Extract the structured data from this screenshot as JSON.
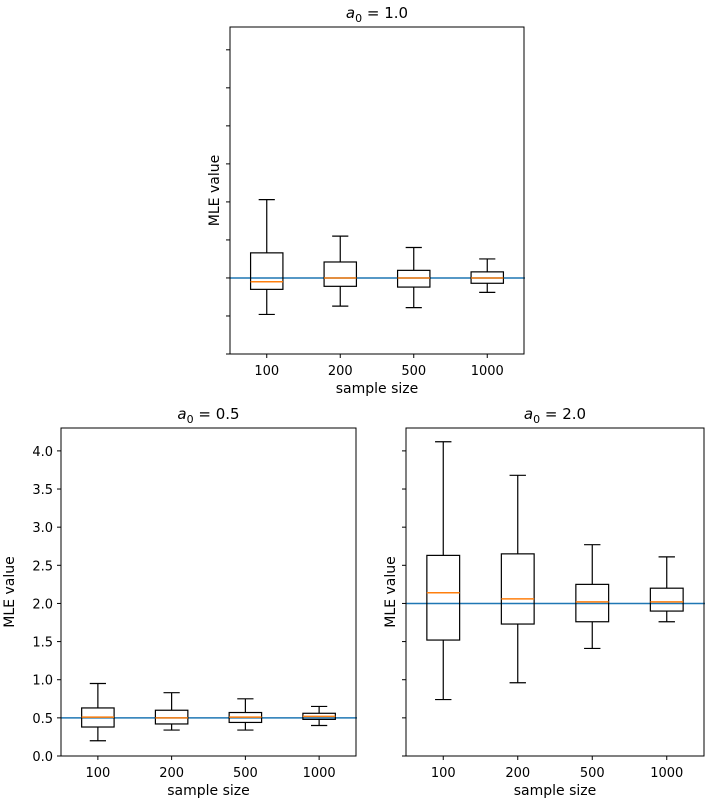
{
  "chart_data": [
    {
      "type": "boxplot",
      "title_var": "a",
      "title_sub": "0",
      "title_value": "= 1.0",
      "xlabel": "sample size",
      "ylabel": "MLE value",
      "ylim": [
        0.0,
        4.3
      ],
      "categories": [
        "100",
        "200",
        "500",
        "1000"
      ],
      "yticks": [],
      "reference_line": 1.0,
      "boxes": [
        {
          "whislo": 0.52,
          "q1": 0.85,
          "med": 0.95,
          "q3": 1.33,
          "whishi": 2.03
        },
        {
          "whislo": 0.63,
          "q1": 0.89,
          "med": 1.0,
          "q3": 1.21,
          "whishi": 1.55
        },
        {
          "whislo": 0.61,
          "q1": 0.88,
          "med": 1.0,
          "q3": 1.1,
          "whishi": 1.4
        },
        {
          "whislo": 0.81,
          "q1": 0.93,
          "med": 1.0,
          "q3": 1.08,
          "whishi": 1.25
        }
      ]
    },
    {
      "type": "boxplot",
      "title_var": "a",
      "title_sub": "0",
      "title_value": "= 0.5",
      "xlabel": "sample size",
      "ylabel": "MLE value",
      "ylim": [
        0.0,
        4.3
      ],
      "categories": [
        "100",
        "200",
        "500",
        "1000"
      ],
      "yticks": [
        "0.0",
        "0.5",
        "1.0",
        "1.5",
        "2.0",
        "2.5",
        "3.0",
        "3.5",
        "4.0"
      ],
      "reference_line": 0.5,
      "boxes": [
        {
          "whislo": 0.2,
          "q1": 0.38,
          "med": 0.51,
          "q3": 0.63,
          "whishi": 0.95
        },
        {
          "whislo": 0.34,
          "q1": 0.42,
          "med": 0.5,
          "q3": 0.6,
          "whishi": 0.83
        },
        {
          "whislo": 0.34,
          "q1": 0.44,
          "med": 0.51,
          "q3": 0.57,
          "whishi": 0.75
        },
        {
          "whislo": 0.4,
          "q1": 0.48,
          "med": 0.52,
          "q3": 0.56,
          "whishi": 0.65
        }
      ]
    },
    {
      "type": "boxplot",
      "title_var": "a",
      "title_sub": "0",
      "title_value": "= 2.0",
      "xlabel": "sample size",
      "ylabel": "MLE value",
      "ylim": [
        0.0,
        4.3
      ],
      "categories": [
        "100",
        "200",
        "500",
        "1000"
      ],
      "yticks": [],
      "reference_line": 2.0,
      "boxes": [
        {
          "whislo": 0.74,
          "q1": 1.52,
          "med": 2.14,
          "q3": 2.63,
          "whishi": 4.12
        },
        {
          "whislo": 0.96,
          "q1": 1.73,
          "med": 2.06,
          "q3": 2.65,
          "whishi": 3.68
        },
        {
          "whislo": 1.41,
          "q1": 1.76,
          "med": 2.02,
          "q3": 2.25,
          "whishi": 2.77
        },
        {
          "whislo": 1.76,
          "q1": 1.9,
          "med": 2.02,
          "q3": 2.2,
          "whishi": 2.61
        }
      ]
    }
  ],
  "colors": {
    "reference_line": "#1f77b4",
    "median": "#ff7f0e",
    "box": "#000000"
  }
}
